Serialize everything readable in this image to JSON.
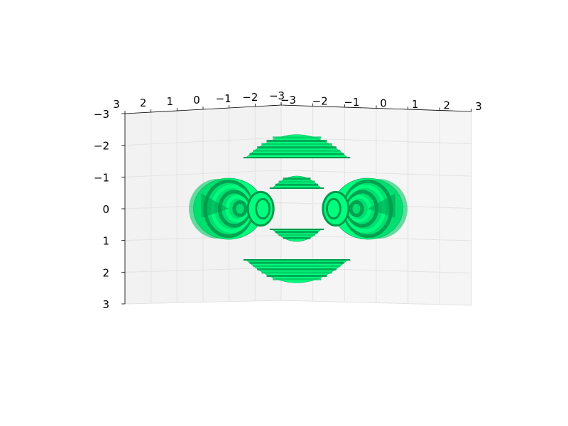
{
  "chart_data": {
    "type": "surface3d",
    "title": "",
    "axes": {
      "x": {
        "label": "",
        "range": [
          -3,
          3
        ],
        "ticks": [
          -3,
          -2,
          -1,
          0,
          1,
          2,
          3
        ],
        "tick_labels": [
          "−3",
          "−2",
          "−1",
          "0",
          "1",
          "2",
          "3"
        ]
      },
      "y": {
        "label": "",
        "range": [
          -3,
          3
        ],
        "ticks": [
          -3,
          -2,
          -1,
          0,
          1,
          2,
          3
        ],
        "tick_labels": [
          "−3",
          "−2",
          "−1",
          "0",
          "1",
          "2",
          "3"
        ]
      },
      "z": {
        "label": "",
        "range": [
          -3,
          3
        ],
        "ticks": [
          -3,
          -2,
          -1,
          0,
          1,
          2,
          3
        ],
        "tick_labels": [
          "−3",
          "−2",
          "−1",
          "0",
          "1",
          "2",
          "3"
        ]
      }
    },
    "grid": true,
    "pane_color": "#f2f2f2",
    "surface": {
      "description_shape": "lobed isosurface: two lobes along x, lens-shaped caps along z",
      "colors": {
        "light": "#00ff7f",
        "mid": "#00c964",
        "dark": "#009a4c",
        "edge": "#00b35c"
      },
      "x_lobes": [
        {
          "center": [
            -2.0,
            0,
            0
          ],
          "radius": 1.0
        },
        {
          "center": [
            2.0,
            0,
            0
          ],
          "radius": 1.0
        }
      ],
      "z_caps": [
        {
          "center_z": -2.0,
          "half_width": 1.25
        },
        {
          "center_z": -1.0,
          "half_width": 0.6
        },
        {
          "center_z": 1.0,
          "half_width": 0.6
        },
        {
          "center_z": 2.0,
          "half_width": 1.25
        }
      ]
    }
  }
}
